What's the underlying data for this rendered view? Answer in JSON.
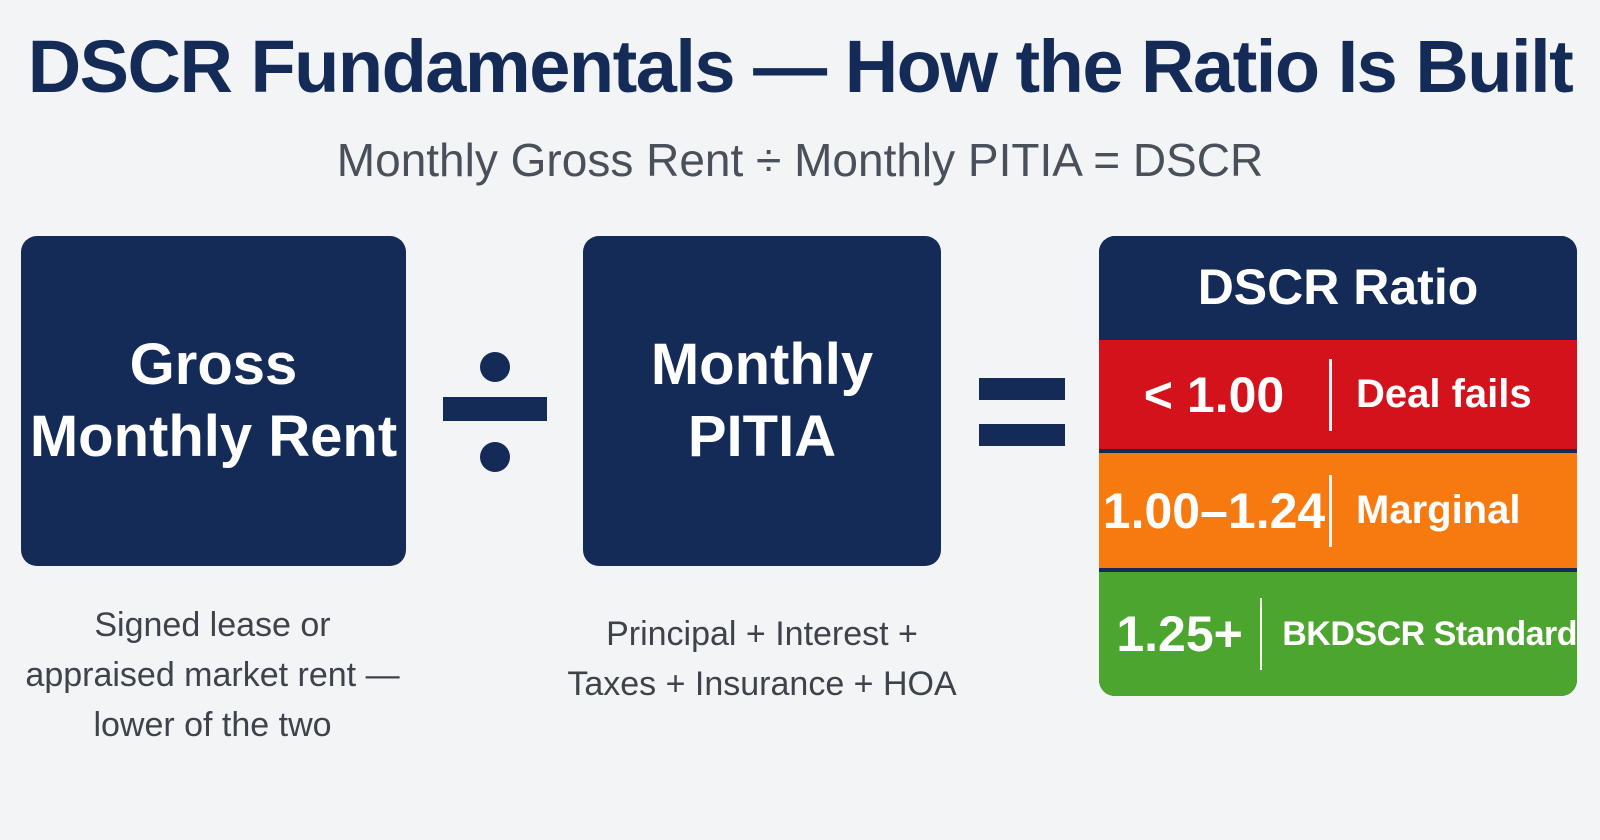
{
  "title": "DSCR Fundamentals — How the Ratio Is Built",
  "formula": "Monthly Gross Rent ÷ Monthly PITIA = DSCR",
  "colors": {
    "navy": "#142a57",
    "fail": "#d3121b",
    "marginal": "#f77a10",
    "standard": "#4ba52e"
  },
  "numerator": {
    "lines": [
      "Gross",
      "Monthly Rent"
    ],
    "note_lines": [
      "Signed lease or",
      "appraised market rent —",
      "lower of the two"
    ]
  },
  "operators": {
    "divide_icon": "division-sign",
    "equals_icon": "equals-sign"
  },
  "denominator": {
    "lines": [
      "Monthly",
      "PITIA"
    ],
    "note_lines": [
      "Principal + Interest +",
      "Taxes + Insurance + HOA"
    ]
  },
  "ratio": {
    "header": "DSCR Ratio",
    "bands": [
      {
        "range": "< 1.00",
        "label": "Deal fails"
      },
      {
        "range": "1.00–1.24",
        "label": "Marginal"
      },
      {
        "range": "1.25+",
        "label": "BKDSCR Standard"
      }
    ]
  }
}
